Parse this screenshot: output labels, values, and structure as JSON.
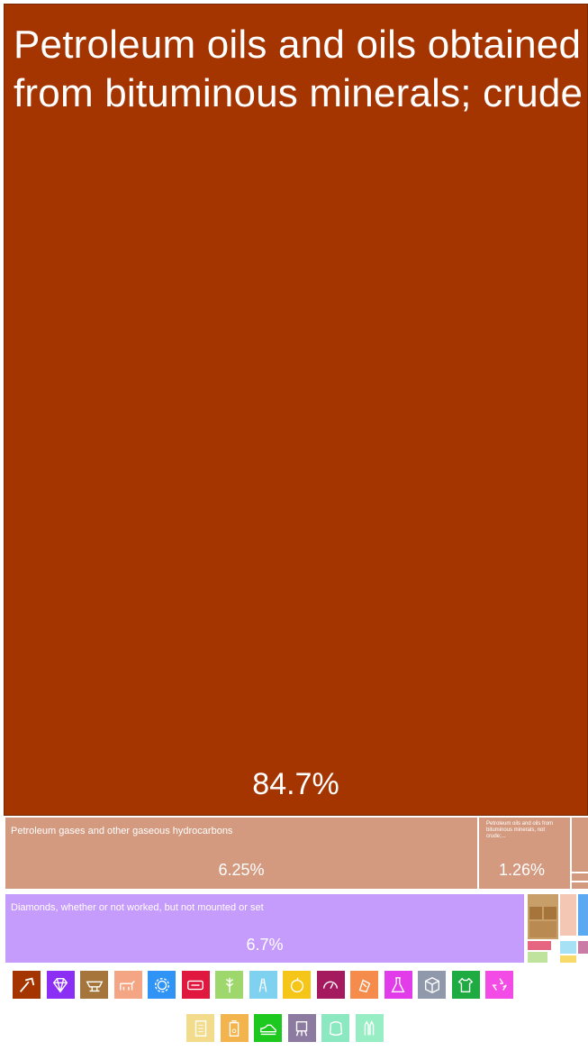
{
  "chart_data": {
    "type": "treemap",
    "items": [
      {
        "label": "Petroleum oils and oils obtained from bituminous minerals; crude",
        "value_pct": 84.7,
        "value_label": "84.7%",
        "color": "#A53500"
      },
      {
        "label": "Petroleum gases and other gaseous hydrocarbons",
        "value_pct": 6.25,
        "value_label": "6.25%",
        "color": "#D39A80"
      },
      {
        "label": "Petroleum oils and oils from bituminous minerals, not crude;...",
        "value_pct": 1.26,
        "value_label": "1.26%",
        "color": "#D39A80"
      },
      {
        "label": "Diamonds, whether or not worked, but not mounted or set",
        "value_pct": 6.7,
        "value_label": "6.7%",
        "color": "#C59BFB"
      }
    ]
  },
  "legend": {
    "icons": [
      {
        "name": "mineral-products",
        "color": "#A53500"
      },
      {
        "name": "precious-metals",
        "color": "#8B2FF5"
      },
      {
        "name": "metals",
        "color": "#A5753C"
      },
      {
        "name": "animal-products",
        "color": "#F4A684"
      },
      {
        "name": "machines",
        "color": "#2F94F5"
      },
      {
        "name": "transportation",
        "color": "#E0173E"
      },
      {
        "name": "vegetable-products",
        "color": "#9ED76B"
      },
      {
        "name": "stone-and-glass",
        "color": "#7FD1F0"
      },
      {
        "name": "foodstuffs",
        "color": "#F5C518"
      },
      {
        "name": "instruments",
        "color": "#A5195F"
      },
      {
        "name": "plastics-and-rubbers",
        "color": "#F58C4B"
      },
      {
        "name": "chemical-products",
        "color": "#E23BEA"
      },
      {
        "name": "miscellaneous",
        "color": "#9099AB"
      },
      {
        "name": "textiles",
        "color": "#1EAB42"
      },
      {
        "name": "weapons-recycle",
        "color": "#F34BE6"
      },
      {
        "name": "paper-goods",
        "color": "#F2DB8A"
      },
      {
        "name": "animal-and-vegetable-bi-products",
        "color": "#F3B34D"
      },
      {
        "name": "footwear-and-headwear",
        "color": "#1DC81F"
      },
      {
        "name": "art-and-antiques",
        "color": "#8C7AA1"
      },
      {
        "name": "animal-hides",
        "color": "#8CE8C0"
      },
      {
        "name": "weapons",
        "color": "#97EDC4"
      }
    ]
  }
}
